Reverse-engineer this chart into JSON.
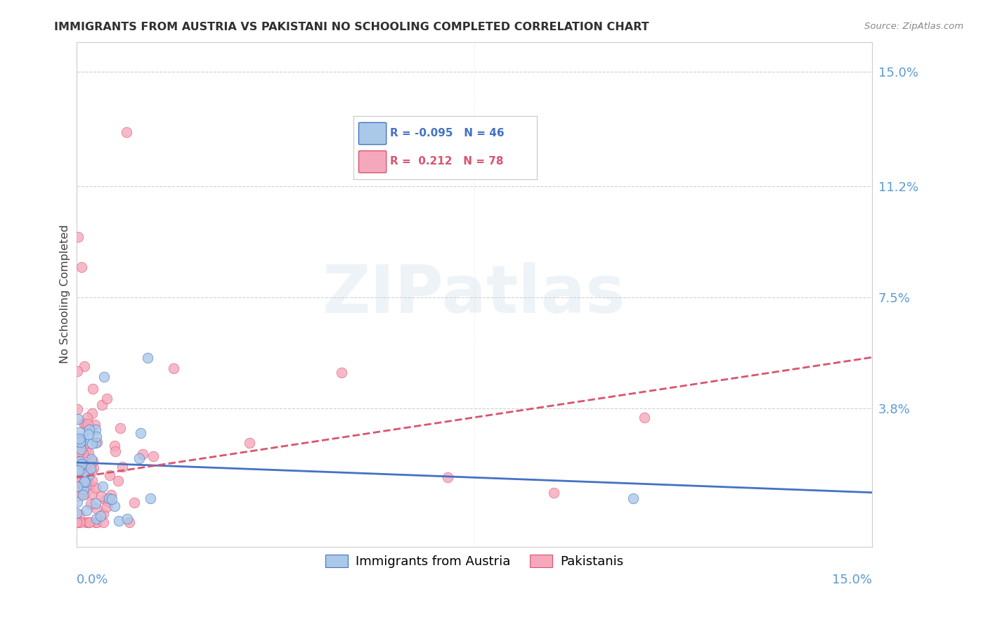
{
  "title": "IMMIGRANTS FROM AUSTRIA VS PAKISTANI NO SCHOOLING COMPLETED CORRELATION CHART",
  "source": "Source: ZipAtlas.com",
  "ylabel": "No Schooling Completed",
  "ytick_labels": [
    "15.0%",
    "11.2%",
    "7.5%",
    "3.8%"
  ],
  "ytick_values": [
    15.0,
    11.2,
    7.5,
    3.8
  ],
  "xmin": 0.0,
  "xmax": 15.0,
  "ymin": -0.8,
  "ymax": 16.0,
  "austria_R": -0.095,
  "austria_N": 46,
  "pakistan_R": 0.212,
  "pakistan_N": 78,
  "austria_color": "#aac8e8",
  "pakistan_color": "#f5a8bc",
  "austria_line_color": "#4472c4",
  "pakistan_line_color": "#d9546e",
  "legend_austria_label": "Immigrants from Austria",
  "legend_pakistan_label": "Pakistanis",
  "background_color": "#ffffff",
  "grid_color": "#d0d0d0",
  "right_label_color": "#5b9bd5",
  "title_color": "#303030",
  "source_color": "#888888",
  "watermark": "ZIPatlas"
}
